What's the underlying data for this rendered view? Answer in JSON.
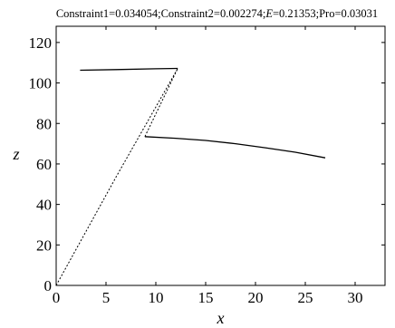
{
  "chart_data": {
    "type": "line",
    "title": "Constraint1=0.034054;Constraint2=0.002274;E=0.21353;Pro=0.03031",
    "title_parts": [
      {
        "text": "Constraint1=0.034054;Constraint2=0.002274;",
        "italic": false
      },
      {
        "text": "E",
        "italic": true
      },
      {
        "text": "=0.21353;Pro=0.03031",
        "italic": false
      }
    ],
    "xlabel": "x",
    "ylabel": "z",
    "xlim": [
      0,
      33
    ],
    "ylim": [
      0,
      128
    ],
    "xticks": [
      0,
      5,
      10,
      15,
      20,
      25,
      30
    ],
    "yticks": [
      0,
      20,
      40,
      60,
      80,
      100,
      120
    ],
    "grid": false,
    "legend": "none",
    "colors": {
      "line": "#000000",
      "background": "#ffffff"
    },
    "series": [
      {
        "style": "solid",
        "x": [
          2.4,
          6.0,
          10.0,
          12.2
        ],
        "y": [
          106.3,
          106.6,
          107.0,
          107.2
        ]
      },
      {
        "style": "dotted",
        "x": [
          0.0,
          6.0,
          12.2,
          8.9
        ],
        "y": [
          0.0,
          53.5,
          107.2,
          73.5
        ]
      },
      {
        "style": "solid",
        "x": [
          8.9,
          12.0,
          15.0,
          18.0,
          21.0,
          24.0,
          27.0
        ],
        "y": [
          73.5,
          72.7,
          71.6,
          70.0,
          68.0,
          65.8,
          63.0
        ]
      }
    ]
  }
}
